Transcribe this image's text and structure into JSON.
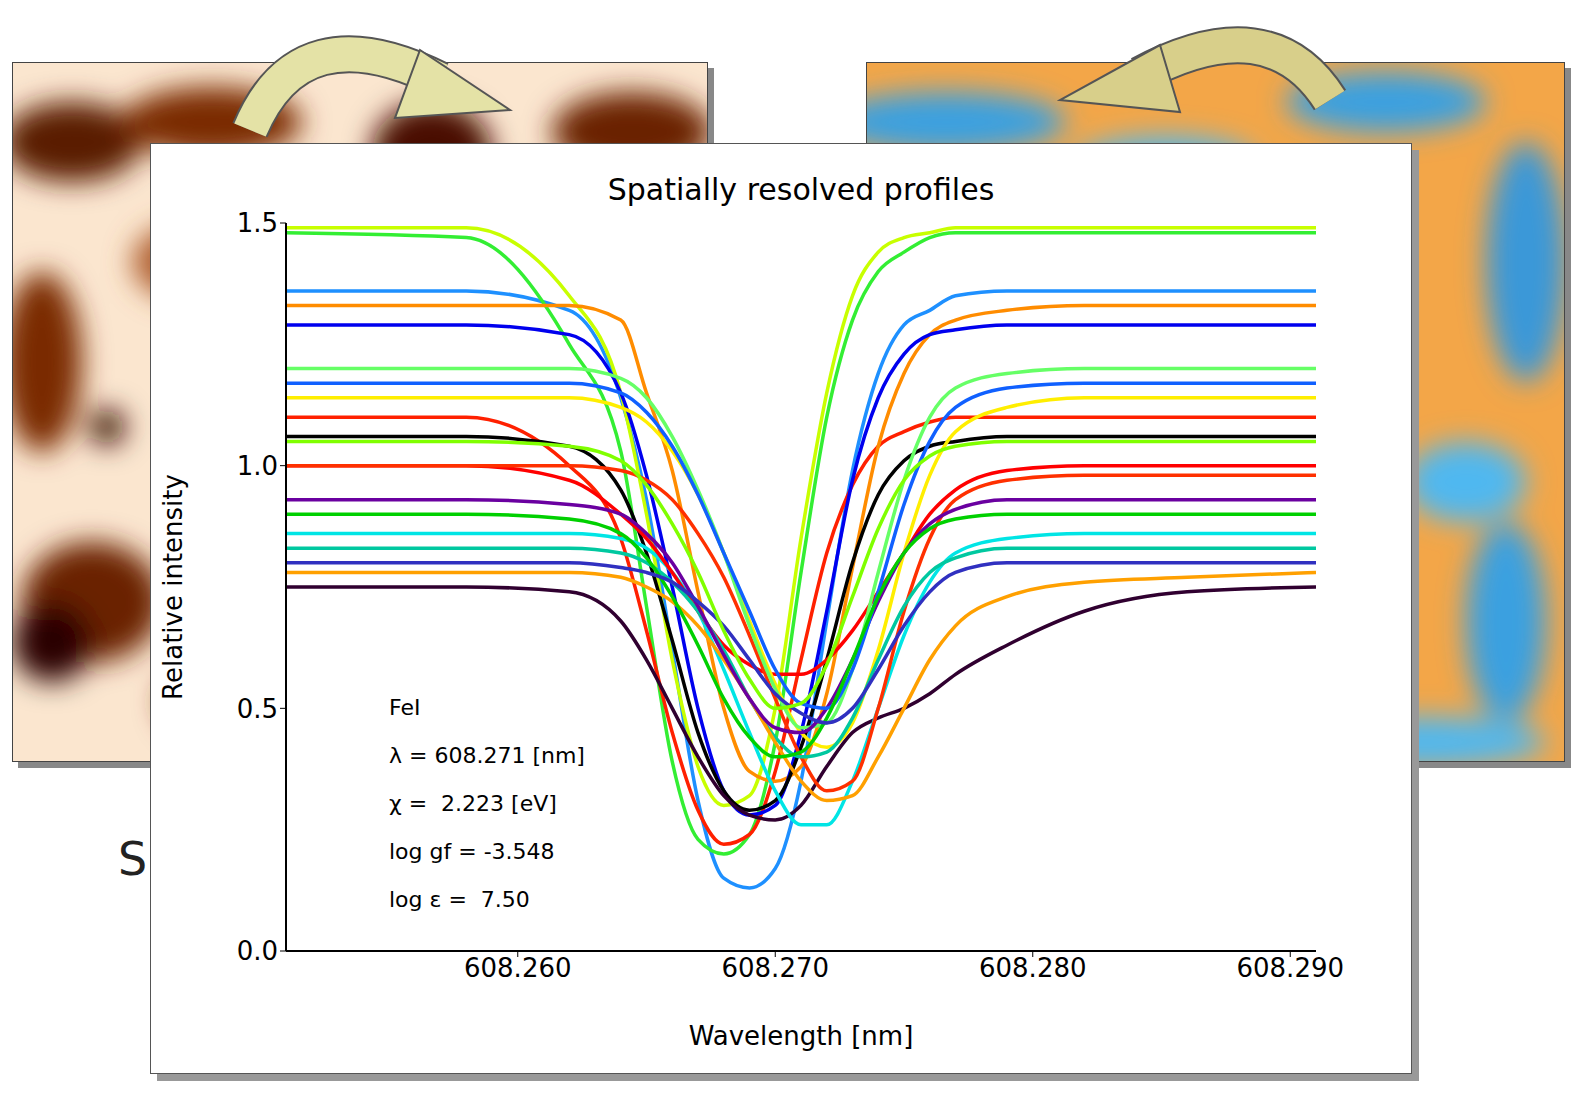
{
  "background_text": "S",
  "chart_data": {
    "type": "line",
    "title": "Spatially resolved profiles",
    "x_label": "Wavelength [nm]",
    "y_label": "Relative intensity",
    "annotations": [
      "FeI",
      "λ = 608.271 [nm]",
      "χ =  2.223 [eV]",
      "log gf = -3.548",
      "log ε =  7.50"
    ],
    "xlim": [
      608.251,
      608.291
    ],
    "xticks": [
      {
        "value": 608.26,
        "label": "608.260"
      },
      {
        "value": 608.27,
        "label": "608.270"
      },
      {
        "value": 608.28,
        "label": "608.280"
      },
      {
        "value": 608.29,
        "label": "608.290"
      }
    ],
    "ylim": [
      0,
      1.5
    ],
    "yticks": [
      {
        "value": 0,
        "label": "0.0"
      },
      0.5,
      {
        "value": 1,
        "label": "1.0"
      },
      1.5
    ],
    "x": [
      608.251,
      608.258,
      608.262,
      608.264,
      608.265,
      608.266,
      608.267,
      608.268,
      608.269,
      608.27,
      608.271,
      608.272,
      608.273,
      608.274,
      608.275,
      608.276,
      608.277,
      608.279,
      608.282,
      608.286,
      608.291
    ],
    "series": [
      {
        "color": "#1e90ff",
        "values": [
          1.36,
          1.36,
          1.32,
          1.14,
          0.93,
          0.62,
          0.31,
          0.15,
          0.13,
          0.17,
          0.35,
          0.68,
          0.99,
          1.19,
          1.29,
          1.32,
          1.35,
          1.36,
          1.36,
          1.36,
          1.36
        ]
      },
      {
        "color": "#33ee33",
        "values": [
          1.48,
          1.47,
          1.25,
          1.03,
          0.71,
          0.39,
          0.23,
          0.2,
          0.24,
          0.43,
          0.78,
          1.1,
          1.3,
          1.4,
          1.44,
          1.47,
          1.48,
          1.48,
          1.48,
          1.48,
          1.48
        ]
      },
      {
        "color": "#c8ff00",
        "values": [
          1.49,
          1.49,
          1.35,
          1.15,
          0.9,
          0.6,
          0.38,
          0.3,
          0.32,
          0.5,
          0.85,
          1.15,
          1.35,
          1.44,
          1.47,
          1.48,
          1.49,
          1.49,
          1.49,
          1.49,
          1.49
        ]
      },
      {
        "color": "#ff2000",
        "values": [
          1.1,
          1.1,
          1.0,
          0.85,
          0.66,
          0.45,
          0.29,
          0.22,
          0.24,
          0.37,
          0.6,
          0.82,
          0.96,
          1.04,
          1.07,
          1.09,
          1.1,
          1.1,
          1.1,
          1.1,
          1.1
        ]
      },
      {
        "color": "#ff8c00",
        "values": [
          1.33,
          1.33,
          1.33,
          1.3,
          1.15,
          0.99,
          0.74,
          0.5,
          0.37,
          0.35,
          0.38,
          0.53,
          0.79,
          1.04,
          1.19,
          1.27,
          1.3,
          1.32,
          1.33,
          1.33,
          1.33
        ]
      },
      {
        "color": "#0000ee",
        "values": [
          1.29,
          1.29,
          1.27,
          1.15,
          0.98,
          0.75,
          0.5,
          0.33,
          0.28,
          0.3,
          0.45,
          0.7,
          0.97,
          1.14,
          1.23,
          1.27,
          1.28,
          1.29,
          1.29,
          1.29,
          1.29
        ]
      },
      {
        "color": "#000000",
        "values": [
          1.06,
          1.06,
          1.04,
          0.95,
          0.82,
          0.64,
          0.45,
          0.33,
          0.29,
          0.31,
          0.42,
          0.6,
          0.8,
          0.94,
          1.01,
          1.04,
          1.05,
          1.06,
          1.06,
          1.06,
          1.06
        ]
      },
      {
        "color": "#300030",
        "values": [
          0.75,
          0.75,
          0.74,
          0.68,
          0.6,
          0.5,
          0.4,
          0.32,
          0.28,
          0.27,
          0.3,
          0.38,
          0.45,
          0.48,
          0.5,
          0.53,
          0.57,
          0.63,
          0.7,
          0.74,
          0.75
        ]
      },
      {
        "color": "#00e5e5",
        "values": [
          0.86,
          0.86,
          0.86,
          0.85,
          0.83,
          0.78,
          0.7,
          0.58,
          0.45,
          0.33,
          0.26,
          0.26,
          0.35,
          0.5,
          0.65,
          0.76,
          0.82,
          0.85,
          0.86,
          0.86,
          0.86
        ]
      },
      {
        "color": "#ff0000",
        "values": [
          1.0,
          1.0,
          0.97,
          0.9,
          0.85,
          0.78,
          0.7,
          0.63,
          0.59,
          0.57,
          0.57,
          0.6,
          0.66,
          0.74,
          0.82,
          0.9,
          0.95,
          0.99,
          1.0,
          1.0,
          1.0
        ]
      },
      {
        "color": "#ff3000",
        "values": [
          1.0,
          1.0,
          1.0,
          0.99,
          0.97,
          0.93,
          0.86,
          0.77,
          0.65,
          0.52,
          0.4,
          0.33,
          0.35,
          0.5,
          0.7,
          0.85,
          0.93,
          0.97,
          0.98,
          0.98,
          0.98
        ]
      },
      {
        "color": "#ffee00",
        "values": [
          1.14,
          1.14,
          1.14,
          1.12,
          1.09,
          1.03,
          0.94,
          0.82,
          0.68,
          0.55,
          0.45,
          0.42,
          0.47,
          0.62,
          0.82,
          0.98,
          1.07,
          1.12,
          1.14,
          1.14,
          1.14
        ]
      },
      {
        "color": "#66ff66",
        "values": [
          1.2,
          1.2,
          1.2,
          1.18,
          1.14,
          1.06,
          0.95,
          0.82,
          0.67,
          0.54,
          0.46,
          0.47,
          0.58,
          0.78,
          0.97,
          1.1,
          1.16,
          1.19,
          1.2,
          1.2,
          1.2
        ]
      },
      {
        "color": "#00c8a0",
        "values": [
          0.83,
          0.83,
          0.83,
          0.82,
          0.8,
          0.76,
          0.7,
          0.62,
          0.52,
          0.44,
          0.4,
          0.41,
          0.48,
          0.6,
          0.71,
          0.78,
          0.81,
          0.83,
          0.83,
          0.83,
          0.83
        ]
      },
      {
        "color": "#ffa000",
        "values": [
          0.78,
          0.78,
          0.78,
          0.77,
          0.75,
          0.72,
          0.67,
          0.6,
          0.52,
          0.43,
          0.35,
          0.31,
          0.32,
          0.4,
          0.5,
          0.6,
          0.67,
          0.73,
          0.76,
          0.77,
          0.78
        ]
      },
      {
        "color": "#6a00a0",
        "values": [
          0.93,
          0.93,
          0.92,
          0.9,
          0.86,
          0.8,
          0.71,
          0.61,
          0.52,
          0.46,
          0.45,
          0.5,
          0.6,
          0.72,
          0.82,
          0.88,
          0.91,
          0.93,
          0.93,
          0.93,
          0.93
        ]
      },
      {
        "color": "#1060ff",
        "values": [
          1.17,
          1.17,
          1.17,
          1.15,
          1.11,
          1.04,
          0.94,
          0.82,
          0.7,
          0.58,
          0.51,
          0.5,
          0.58,
          0.74,
          0.92,
          1.05,
          1.12,
          1.16,
          1.17,
          1.17,
          1.17
        ]
      },
      {
        "color": "#00d000",
        "values": [
          0.9,
          0.9,
          0.89,
          0.86,
          0.81,
          0.73,
          0.63,
          0.52,
          0.44,
          0.4,
          0.41,
          0.48,
          0.6,
          0.73,
          0.82,
          0.87,
          0.89,
          0.9,
          0.9,
          0.9,
          0.9
        ]
      },
      {
        "color": "#3030c0",
        "values": [
          0.8,
          0.8,
          0.8,
          0.79,
          0.78,
          0.76,
          0.72,
          0.67,
          0.6,
          0.53,
          0.49,
          0.47,
          0.5,
          0.58,
          0.67,
          0.74,
          0.78,
          0.8,
          0.8,
          0.8,
          0.8
        ]
      },
      {
        "color": "#80ff00",
        "values": [
          1.05,
          1.05,
          1.04,
          1.01,
          0.96,
          0.88,
          0.78,
          0.66,
          0.56,
          0.5,
          0.51,
          0.59,
          0.73,
          0.87,
          0.97,
          1.02,
          1.04,
          1.05,
          1.05,
          1.05,
          1.05
        ]
      }
    ]
  }
}
